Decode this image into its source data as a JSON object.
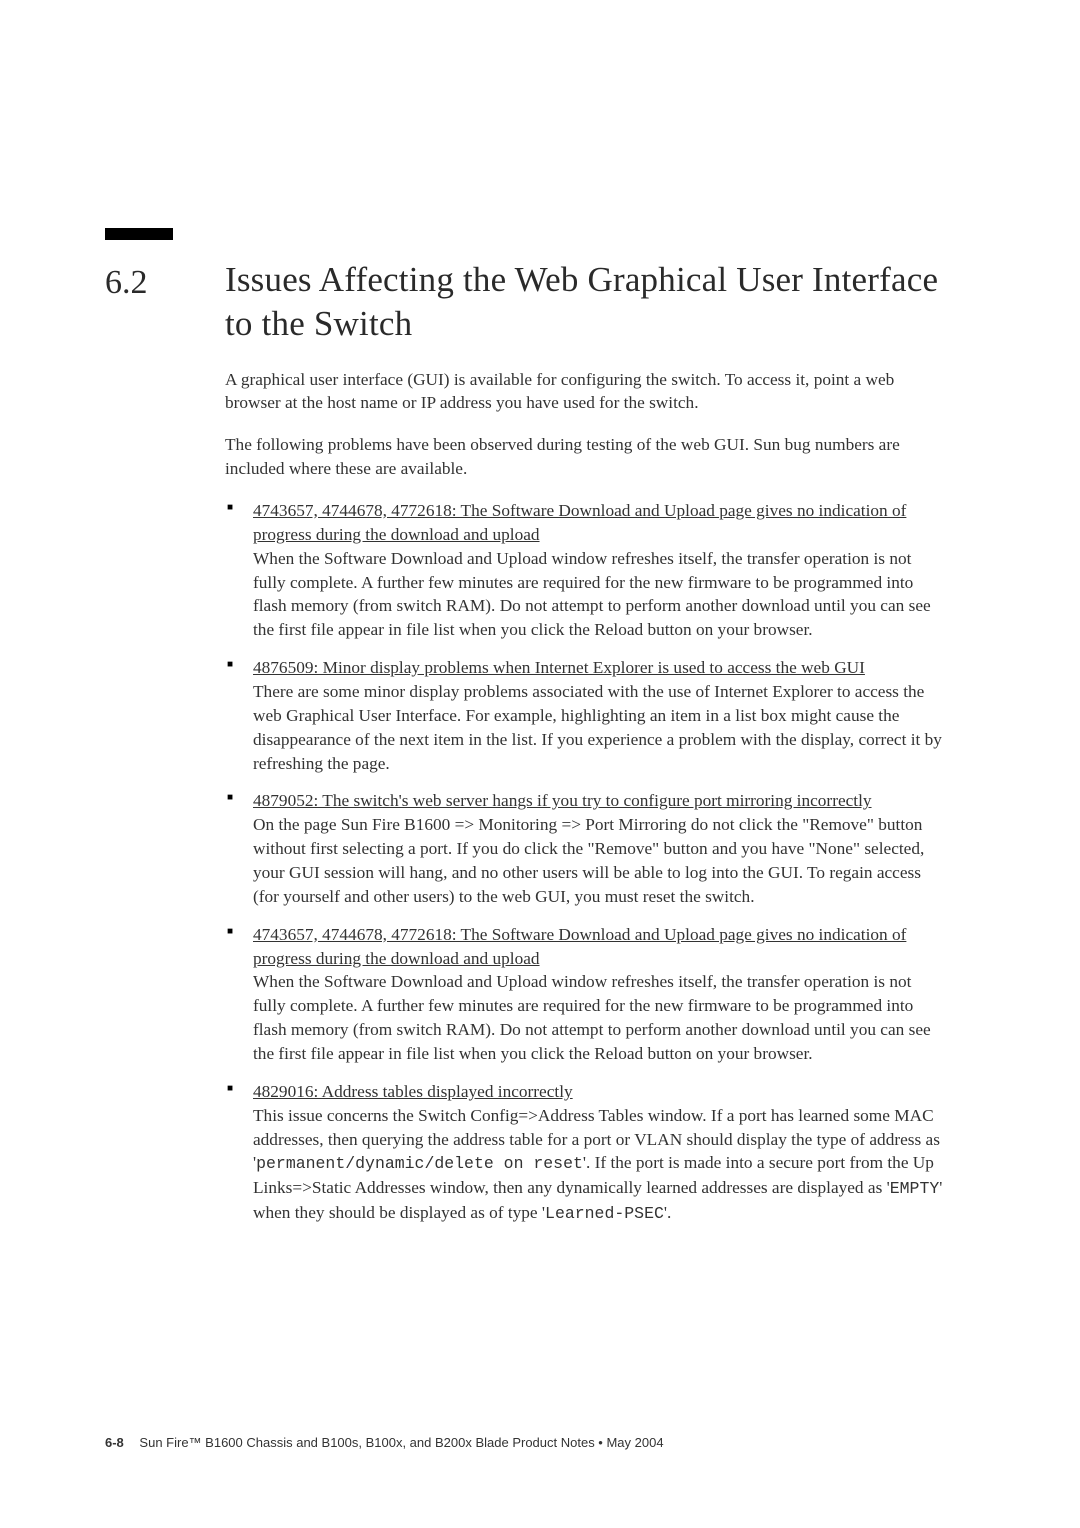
{
  "section": {
    "number": "6.2",
    "title": "Issues Affecting the Web Graphical User Interface to the Switch"
  },
  "paragraphs": {
    "p1": "A graphical user interface (GUI) is available for configuring the switch. To access it, point a web browser at the host name or IP address you have used for the switch.",
    "p2": "The following problems have been observed during testing of the web GUI. Sun bug numbers are included where these are available."
  },
  "issues": {
    "i1": {
      "link": "4743657, 4744678, 4772618: The Software Download and Upload page gives no indication of progress during the download and upload",
      "body": "When the Software Download and Upload window refreshes itself, the transfer operation is not fully complete. A further few minutes are required for the new firmware to be programmed into flash memory (from switch RAM). Do not attempt to perform another download until you can see the first file appear in file list when you click the Reload button on your browser."
    },
    "i2": {
      "link": "4876509: Minor display problems when Internet Explorer is used to access the web GUI",
      "body": "There are some minor display problems associated with the use of Internet Explorer to access the web Graphical User Interface. For example, highlighting an item in a list box might cause the disappearance of the next item in the list. If you experience a problem with the display, correct it by refreshing the page."
    },
    "i3": {
      "link": "4879052: The switch's web server hangs if you try to configure port mirroring incorrectly",
      "body": "On the page Sun Fire B1600 => Monitoring => Port Mirroring do not click the \"Remove\" button without first selecting a port. If you do click the \"Remove\" button and you have \"None\" selected, your GUI session will hang, and no other users will be able to log into the GUI. To regain access (for yourself and other users) to the web GUI, you must reset the switch."
    },
    "i4": {
      "link": "4743657, 4744678, 4772618: The Software Download and Upload page gives no indication of progress during the download and upload",
      "body": "When the Software Download and Upload window refreshes itself, the transfer operation is not fully complete. A further few minutes are required for the new firmware to be programmed into flash memory (from switch RAM). Do not attempt to perform another download until you can see the first file appear in file list when you click the Reload button on your browser."
    },
    "i5": {
      "link": "4829016: Address tables displayed incorrectly",
      "body_a": "This issue concerns the Switch Config=>Address Tables window. If a port has learned some MAC addresses, then querying the address table for a port or VLAN should display the type of address as '",
      "mono_a": "permanent/dynamic/delete on reset",
      "body_b": "'. If the port is made into a secure port from the Up Links=>Static Addresses window, then any dynamically learned addresses are displayed as '",
      "mono_b": "EMPTY",
      "body_c": "' when they should be displayed as of type '",
      "mono_c": "Learned-PSEC",
      "body_d": "'."
    }
  },
  "footer": {
    "page": "6-8",
    "text": "Sun Fire™ B1600 Chassis and B100s, B100x, and B200x Blade Product Notes • May 2004"
  }
}
